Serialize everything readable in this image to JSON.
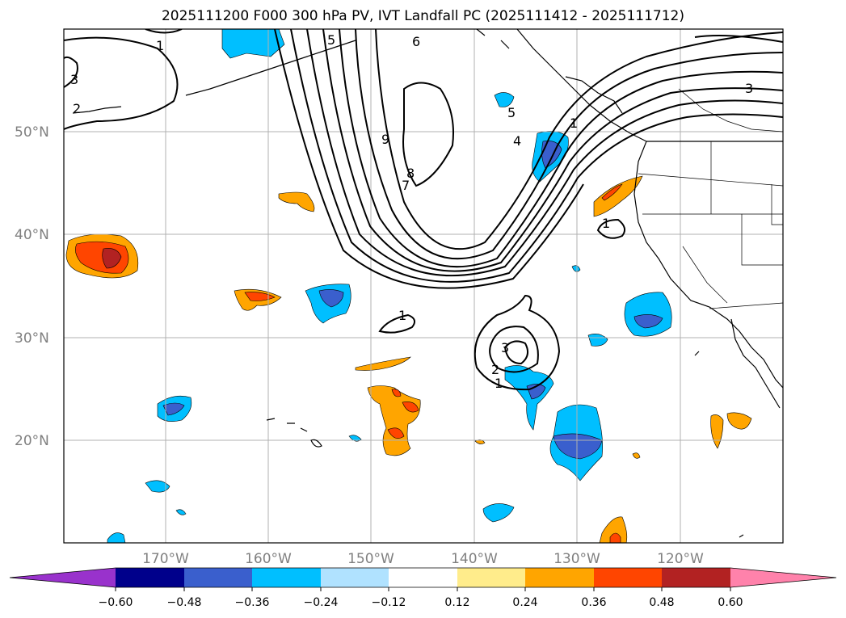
{
  "title": "2025111200 F000 300 hPa PV, IVT Landfall PC (2025111412 - 2025111712)",
  "lat_labels": [
    "50°N",
    "40°N",
    "30°N",
    "20°N"
  ],
  "lon_labels": [
    "170°W",
    "160°W",
    "150°W",
    "140°W",
    "130°W",
    "120°W"
  ],
  "colorbar": {
    "ticks": [
      "−0.60",
      "−0.48",
      "−0.36",
      "−0.24",
      "−0.12",
      "0.12",
      "0.24",
      "0.36",
      "0.48",
      "0.60"
    ],
    "colors": [
      "#9932cc",
      "#00008b",
      "#3a5fcd",
      "#00bfff",
      "#b0e2ff",
      "#ffffff",
      "#ffec8b",
      "#ffa500",
      "#ff4500",
      "#b22222",
      "#ff82ab"
    ]
  },
  "contour_labels": [
    "1",
    "2",
    "3",
    "5",
    "6",
    "7",
    "8",
    "9",
    "4",
    "1",
    "5",
    "3",
    "1",
    "1",
    "3",
    "2",
    "1"
  ]
}
